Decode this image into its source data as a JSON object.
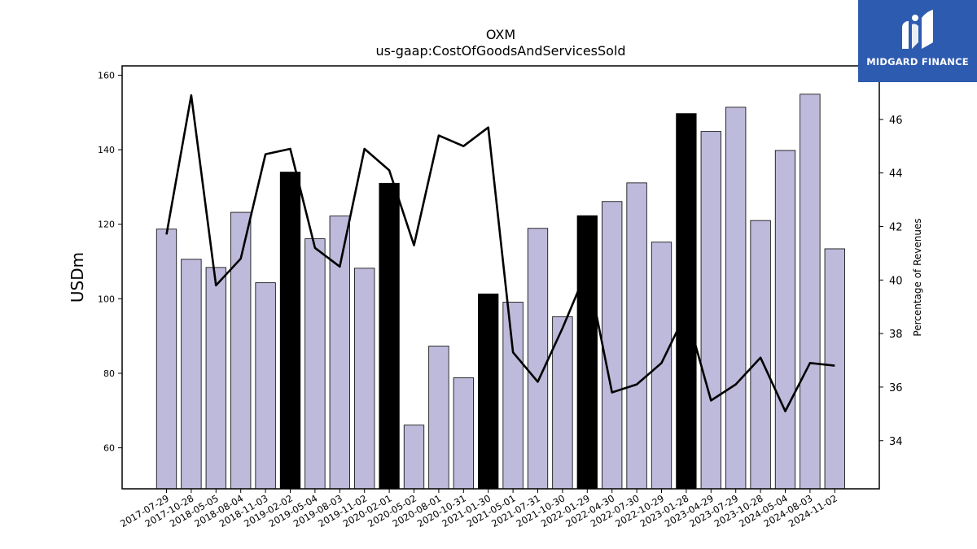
{
  "chart_data": {
    "type": "bar",
    "title": "OXM",
    "subtitle": "us-gaap:CostOfGoodsAndServicesSold",
    "ylabel": "USDm",
    "y2label": "Percentage of Revenues",
    "ylim": [
      49,
      162.5
    ],
    "y2lim": [
      32.2,
      48.0
    ],
    "yticks": [
      60,
      80,
      100,
      120,
      140,
      160
    ],
    "y2ticks": [
      34,
      36,
      38,
      40,
      42,
      44,
      46
    ],
    "categories": [
      "2017-07-29",
      "2017-10-28",
      "2018-05-05",
      "2018-08-04",
      "2018-11-03",
      "2019-02-02",
      "2019-05-04",
      "2019-08-03",
      "2019-11-02",
      "2020-02-01",
      "2020-05-02",
      "2020-08-01",
      "2020-10-31",
      "2021-01-30",
      "2021-05-01",
      "2021-07-31",
      "2021-10-30",
      "2022-01-29",
      "2022-04-30",
      "2022-07-30",
      "2022-10-29",
      "2023-01-28",
      "2023-04-29",
      "2023-07-29",
      "2023-10-28",
      "2024-05-04",
      "2024-08-03",
      "2024-11-02"
    ],
    "series": [
      {
        "type": "bar",
        "axis": "left",
        "values": [
          118.7,
          110.6,
          108.4,
          123.2,
          104.3,
          134.0,
          116.1,
          122.2,
          108.2,
          131.0,
          66.1,
          87.3,
          78.8,
          101.3,
          99.1,
          118.9,
          95.2,
          122.3,
          126.1,
          131.1,
          115.2,
          149.7,
          144.9,
          151.4,
          121.0,
          139.8,
          154.9,
          113.4
        ],
        "highlight": [
          false,
          false,
          false,
          false,
          false,
          true,
          false,
          false,
          false,
          true,
          false,
          false,
          false,
          true,
          false,
          false,
          false,
          true,
          false,
          false,
          false,
          true,
          false,
          false,
          false,
          false,
          false,
          false
        ]
      },
      {
        "type": "line",
        "axis": "right",
        "values": [
          41.7,
          46.9,
          39.8,
          40.8,
          44.7,
          44.9,
          41.2,
          40.5,
          44.9,
          44.1,
          41.3,
          45.4,
          45.0,
          45.7,
          37.3,
          36.2,
          38.2,
          40.4,
          35.8,
          36.1,
          36.9,
          38.8,
          35.5,
          36.1,
          37.1,
          35.1,
          36.9,
          36.8
        ]
      }
    ],
    "colors": {
      "bar": "#bebadb",
      "highlight": "#000000",
      "line": "#000000"
    }
  },
  "logo": {
    "text": "MIDGARD FINANCE",
    "bg": "#2d5bb0"
  }
}
